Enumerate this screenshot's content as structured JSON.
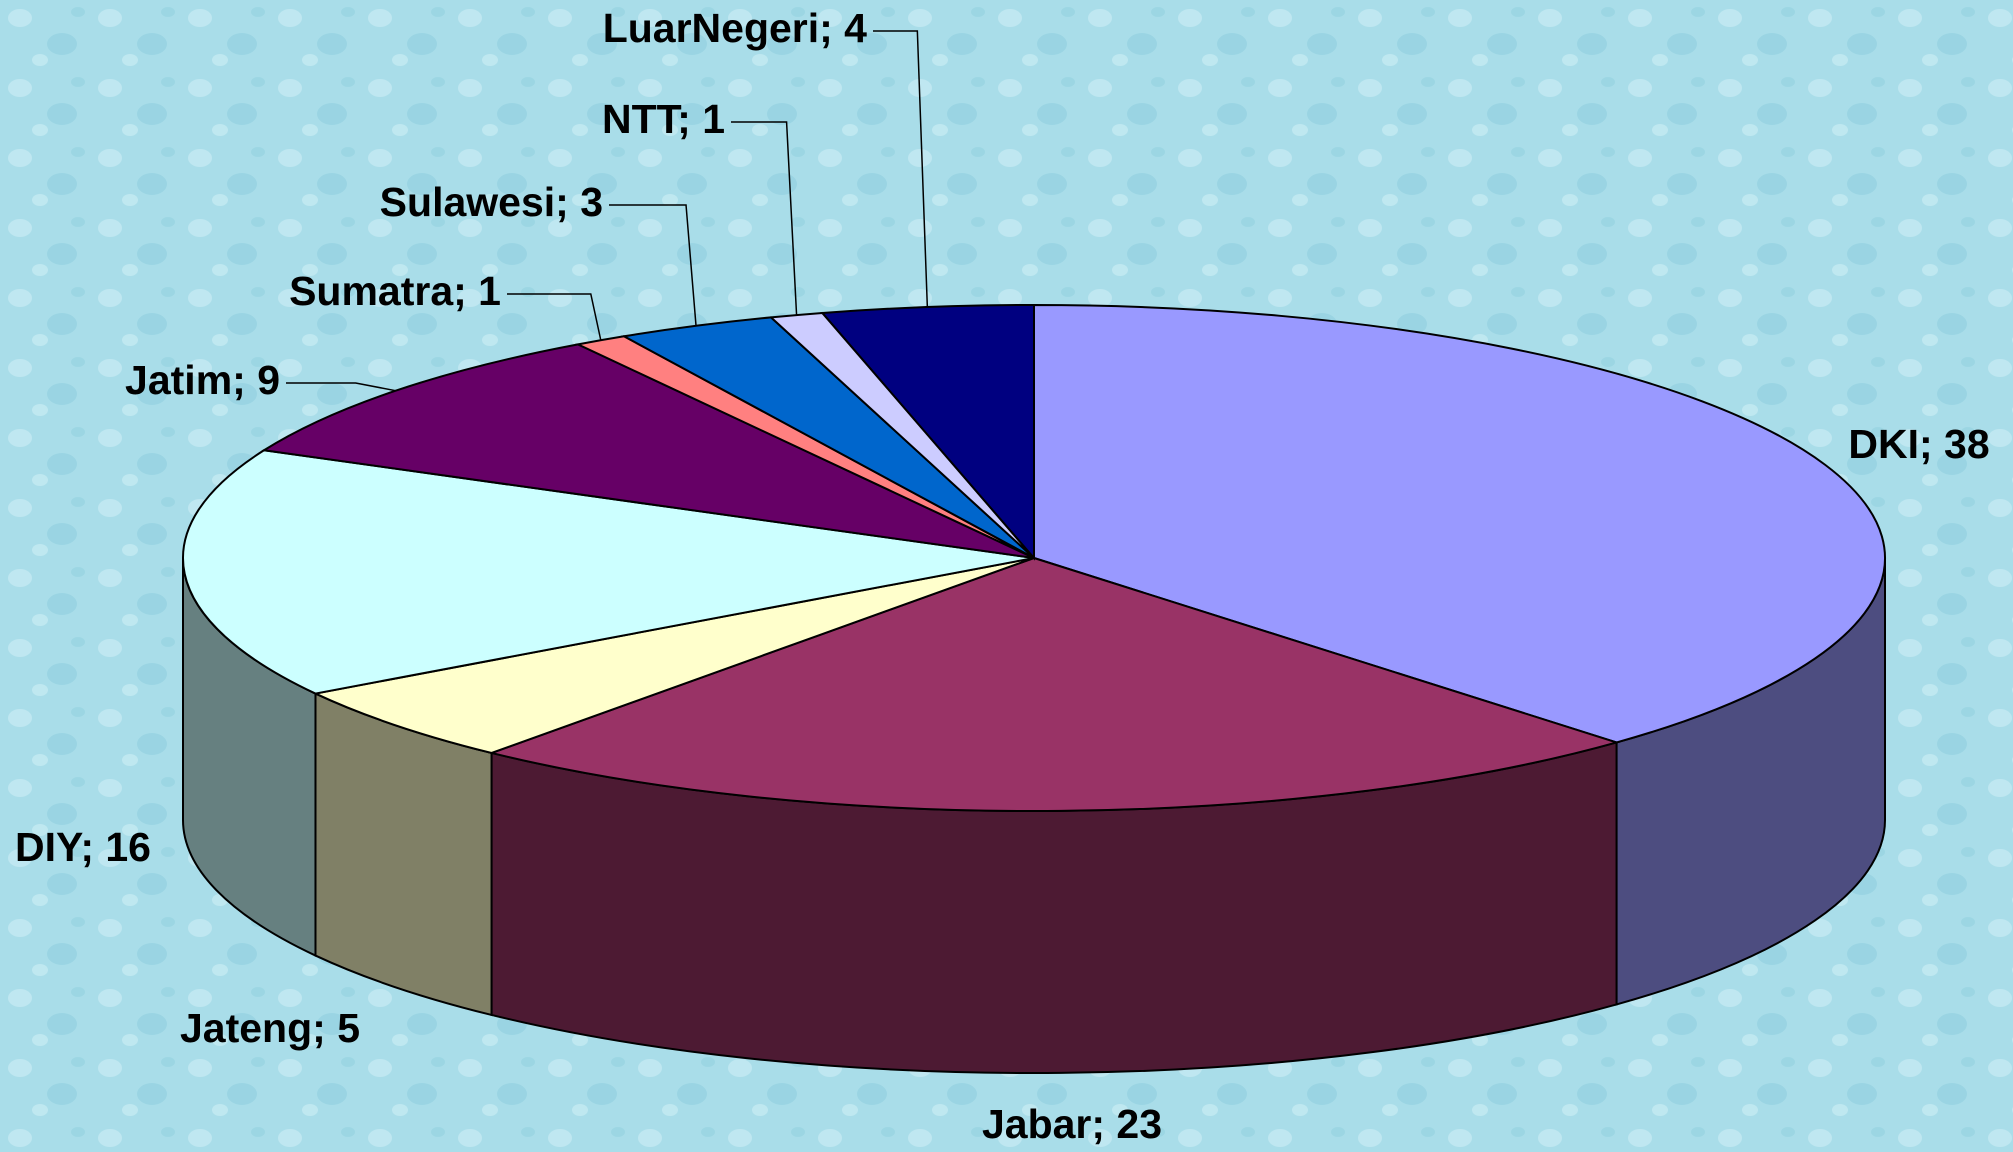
{
  "chart_data": {
    "type": "pie3d",
    "values": [
      38,
      23,
      5,
      16,
      9,
      1,
      3,
      1,
      4
    ],
    "value_labels": [
      "DKI; 38",
      "Jabar; 23",
      "Jateng; 5",
      "DIY; 16",
      "Jatim; 9",
      "Sumatra; 1",
      "Sulawesi; 3",
      "NTT; 1",
      "LuarNegeri; 4"
    ],
    "colors": [
      "#9999ff",
      "#993366",
      "#ffffcc",
      "#ccffff",
      "#660066",
      "#ff8080",
      "#0066cc",
      "#ccccff",
      "#000080"
    ]
  }
}
